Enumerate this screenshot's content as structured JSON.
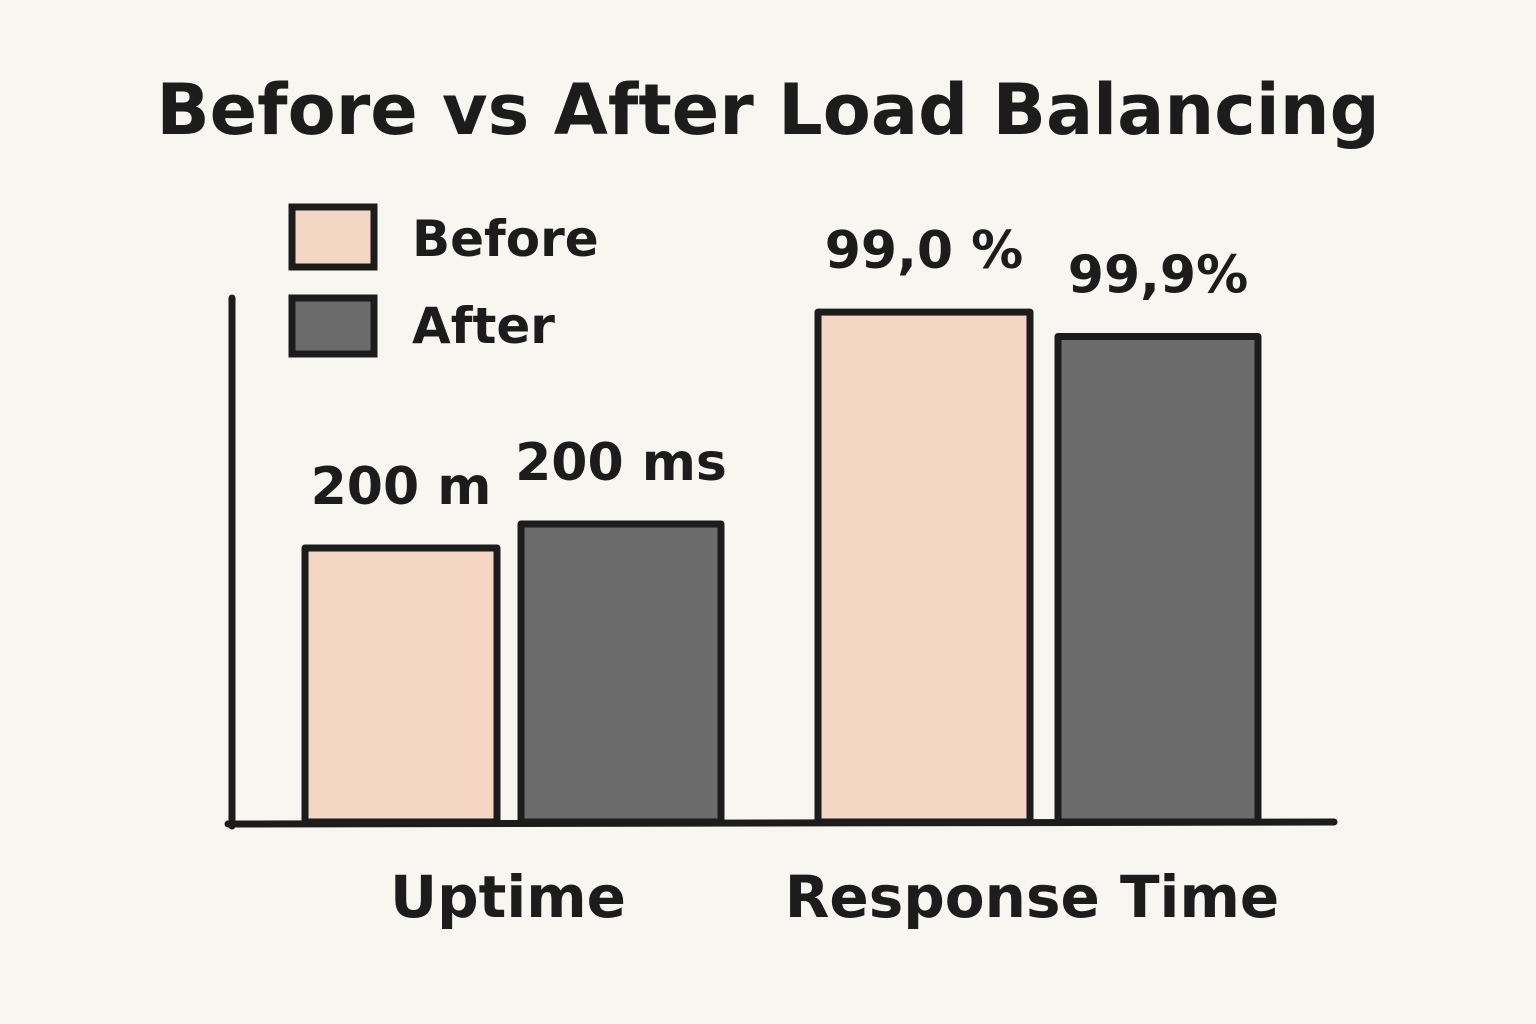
{
  "chart_data": {
    "type": "bar",
    "title": "Before vs After Load Balancing",
    "categories": [
      "Uptime",
      "Response Time"
    ],
    "series": [
      {
        "name": "Before",
        "color": "#f5d6c5",
        "values": [
          200,
          99.0
        ],
        "labels": [
          "200 m",
          "99,0 %"
        ]
      },
      {
        "name": "After",
        "color": "#6b6b6b",
        "values": [
          200,
          99.9
        ],
        "labels": [
          "200 ms",
          "99,9%"
        ]
      }
    ],
    "xlabel": "",
    "ylabel": "",
    "grid": false,
    "legend_position": "top-left"
  },
  "colors": {
    "background": "#f8f6f1",
    "outline": "#1c1c1c"
  }
}
